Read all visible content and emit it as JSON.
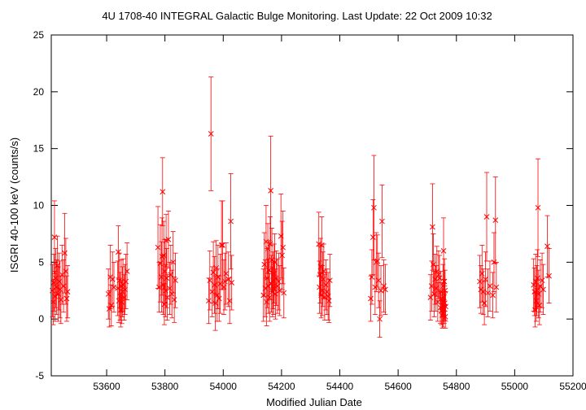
{
  "chart_data": {
    "type": "scatter",
    "title": "4U 1708-40   INTEGRAL Galactic Bulge Monitoring.  Last Update: 22 Oct 2009 10:32",
    "xlabel": "Modified Julian Date",
    "ylabel": "ISGRI 40-100 keV (counts/s)",
    "xlim": [
      53410,
      55200
    ],
    "ylim": [
      -5,
      25
    ],
    "xticks": [
      53600,
      53800,
      54000,
      54200,
      54400,
      54600,
      54800,
      55000,
      55200
    ],
    "yticks": [
      -5,
      0,
      5,
      10,
      15,
      20,
      25
    ],
    "grid": false,
    "legend": "none",
    "color": "#ff0000",
    "points": [
      {
        "x": 53414,
        "y": 2.5,
        "err": 2.3
      },
      {
        "x": 53417,
        "y": 1.5,
        "err": 2.0
      },
      {
        "x": 53419,
        "y": 3.2,
        "err": 2.5
      },
      {
        "x": 53421,
        "y": 7.2,
        "err": 3.2
      },
      {
        "x": 53423,
        "y": 2.0,
        "err": 2.2
      },
      {
        "x": 53425,
        "y": 3.6,
        "err": 2.6
      },
      {
        "x": 53428,
        "y": 2.8,
        "err": 2.4
      },
      {
        "x": 53431,
        "y": 4.7,
        "err": 2.6
      },
      {
        "x": 53434,
        "y": 2.2,
        "err": 2.4
      },
      {
        "x": 53437,
        "y": 3.3,
        "err": 2.5
      },
      {
        "x": 53440,
        "y": 2.6,
        "err": 2.5
      },
      {
        "x": 53443,
        "y": 1.7,
        "err": 2.1
      },
      {
        "x": 53447,
        "y": 3.9,
        "err": 2.6
      },
      {
        "x": 53452,
        "y": 2.9,
        "err": 2.3
      },
      {
        "x": 53456,
        "y": 5.8,
        "err": 3.5
      },
      {
        "x": 53460,
        "y": 4.2,
        "err": 2.9
      },
      {
        "x": 53463,
        "y": 1.8,
        "err": 2.0
      },
      {
        "x": 53466,
        "y": 2.4,
        "err": 2.3
      },
      {
        "x": 53606,
        "y": 2.2,
        "err": 2.2
      },
      {
        "x": 53609,
        "y": 0.9,
        "err": 1.6
      },
      {
        "x": 53613,
        "y": 3.7,
        "err": 2.8
      },
      {
        "x": 53616,
        "y": 1.2,
        "err": 1.8
      },
      {
        "x": 53620,
        "y": 3.5,
        "err": 2.4
      },
      {
        "x": 53625,
        "y": 2.8,
        "err": 2.2
      },
      {
        "x": 53638,
        "y": 2.7,
        "err": 2.4
      },
      {
        "x": 53640,
        "y": 5.9,
        "err": 2.3
      },
      {
        "x": 53642,
        "y": 1.6,
        "err": 1.9
      },
      {
        "x": 53644,
        "y": 3.4,
        "err": 2.4
      },
      {
        "x": 53646,
        "y": 2.0,
        "err": 2.1
      },
      {
        "x": 53648,
        "y": 0.8,
        "err": 1.5
      },
      {
        "x": 53650,
        "y": 2.9,
        "err": 2.3
      },
      {
        "x": 53652,
        "y": 1.5,
        "err": 1.9
      },
      {
        "x": 53654,
        "y": 2.4,
        "err": 2.2
      },
      {
        "x": 53656,
        "y": 3.0,
        "err": 2.3
      },
      {
        "x": 53660,
        "y": 1.9,
        "err": 2.0
      },
      {
        "x": 53663,
        "y": 2.6,
        "err": 2.2
      },
      {
        "x": 53666,
        "y": 3.3,
        "err": 2.4
      },
      {
        "x": 53670,
        "y": 4.2,
        "err": 2.5
      },
      {
        "x": 53776,
        "y": 6.3,
        "err": 3.6
      },
      {
        "x": 53780,
        "y": 2.8,
        "err": 2.2
      },
      {
        "x": 53784,
        "y": 4.9,
        "err": 3.4
      },
      {
        "x": 53788,
        "y": 3.7,
        "err": 3.1
      },
      {
        "x": 53790,
        "y": 5.5,
        "err": 3.4
      },
      {
        "x": 53792,
        "y": 11.2,
        "err": 3.0
      },
      {
        "x": 53794,
        "y": 3.0,
        "err": 2.6
      },
      {
        "x": 53796,
        "y": 5.6,
        "err": 3.0
      },
      {
        "x": 53798,
        "y": 1.3,
        "err": 1.8
      },
      {
        "x": 53800,
        "y": 4.2,
        "err": 2.8
      },
      {
        "x": 53802,
        "y": 2.5,
        "err": 2.3
      },
      {
        "x": 53804,
        "y": 6.9,
        "err": 2.3
      },
      {
        "x": 53806,
        "y": 3.6,
        "err": 2.6
      },
      {
        "x": 53808,
        "y": 1.9,
        "err": 2.0
      },
      {
        "x": 53812,
        "y": 7.0,
        "err": 2.5
      },
      {
        "x": 53816,
        "y": 2.7,
        "err": 2.3
      },
      {
        "x": 53820,
        "y": 3.9,
        "err": 2.6
      },
      {
        "x": 53824,
        "y": 2.2,
        "err": 2.1
      },
      {
        "x": 53828,
        "y": 5.0,
        "err": 2.7
      },
      {
        "x": 53832,
        "y": 1.7,
        "err": 2.0
      },
      {
        "x": 53836,
        "y": 3.4,
        "err": 2.4
      },
      {
        "x": 53950,
        "y": 1.6,
        "err": 2.0
      },
      {
        "x": 53954,
        "y": 3.4,
        "err": 2.6
      },
      {
        "x": 53958,
        "y": 16.3,
        "err": 5.0
      },
      {
        "x": 53962,
        "y": 2.4,
        "err": 2.2
      },
      {
        "x": 53966,
        "y": 4.1,
        "err": 2.7
      },
      {
        "x": 53970,
        "y": 3.0,
        "err": 2.5
      },
      {
        "x": 53973,
        "y": 1.4,
        "err": 2.4
      },
      {
        "x": 53976,
        "y": 4.5,
        "err": 2.4
      },
      {
        "x": 53979,
        "y": 2.1,
        "err": 2.3
      },
      {
        "x": 53982,
        "y": 3.7,
        "err": 2.8
      },
      {
        "x": 53986,
        "y": 1.8,
        "err": 2.0
      },
      {
        "x": 53990,
        "y": 3.1,
        "err": 2.6
      },
      {
        "x": 53994,
        "y": 6.5,
        "err": 3.9
      },
      {
        "x": 53998,
        "y": 6.5,
        "err": 3.9
      },
      {
        "x": 54002,
        "y": 2.8,
        "err": 2.4
      },
      {
        "x": 54006,
        "y": 3.3,
        "err": 2.5
      },
      {
        "x": 54010,
        "y": 4.0,
        "err": 2.7
      },
      {
        "x": 54018,
        "y": 3.5,
        "err": 2.4
      },
      {
        "x": 54022,
        "y": 1.6,
        "err": 2.0
      },
      {
        "x": 54026,
        "y": 8.6,
        "err": 4.2
      },
      {
        "x": 54029,
        "y": 3.2,
        "err": 2.4
      },
      {
        "x": 54138,
        "y": 2.1,
        "err": 2.3
      },
      {
        "x": 54141,
        "y": 4.8,
        "err": 2.8
      },
      {
        "x": 54144,
        "y": 2.7,
        "err": 2.5
      },
      {
        "x": 54147,
        "y": 6.8,
        "err": 3.2
      },
      {
        "x": 54149,
        "y": 1.5,
        "err": 2.1
      },
      {
        "x": 54151,
        "y": 3.6,
        "err": 2.6
      },
      {
        "x": 54153,
        "y": 6.2,
        "err": 2.2
      },
      {
        "x": 54155,
        "y": 2.9,
        "err": 2.4
      },
      {
        "x": 54157,
        "y": 4.3,
        "err": 2.6
      },
      {
        "x": 54159,
        "y": 1.9,
        "err": 2.1
      },
      {
        "x": 54161,
        "y": 6.6,
        "err": 2.4
      },
      {
        "x": 54163,
        "y": 11.3,
        "err": 4.8
      },
      {
        "x": 54165,
        "y": 3.1,
        "err": 2.5
      },
      {
        "x": 54167,
        "y": 5.2,
        "err": 2.8
      },
      {
        "x": 54169,
        "y": 2.4,
        "err": 2.2
      },
      {
        "x": 54171,
        "y": 3.4,
        "err": 2.5
      },
      {
        "x": 54173,
        "y": 2.7,
        "err": 2.3
      },
      {
        "x": 54175,
        "y": 4.0,
        "err": 2.6
      },
      {
        "x": 54177,
        "y": 5.0,
        "err": 2.5
      },
      {
        "x": 54179,
        "y": 2.2,
        "err": 2.2
      },
      {
        "x": 54182,
        "y": 3.6,
        "err": 2.4
      },
      {
        "x": 54186,
        "y": 2.9,
        "err": 2.4
      },
      {
        "x": 54190,
        "y": 3.3,
        "err": 2.5
      },
      {
        "x": 54194,
        "y": 2.5,
        "err": 2.2
      },
      {
        "x": 54198,
        "y": 7.3,
        "err": 3.7
      },
      {
        "x": 54202,
        "y": 5.6,
        "err": 3.0
      },
      {
        "x": 54205,
        "y": 6.3,
        "err": 3.2
      },
      {
        "x": 54208,
        "y": 2.3,
        "err": 2.2
      },
      {
        "x": 54328,
        "y": 6.6,
        "err": 2.8
      },
      {
        "x": 54330,
        "y": 2.8,
        "err": 2.3
      },
      {
        "x": 54332,
        "y": 3.9,
        "err": 2.5
      },
      {
        "x": 54334,
        "y": 4.6,
        "err": 2.5
      },
      {
        "x": 54336,
        "y": 2.1,
        "err": 2.0
      },
      {
        "x": 54338,
        "y": 6.5,
        "err": 2.5
      },
      {
        "x": 54340,
        "y": 2.5,
        "err": 2.2
      },
      {
        "x": 54342,
        "y": 3.5,
        "err": 2.4
      },
      {
        "x": 54345,
        "y": 4.2,
        "err": 2.4
      },
      {
        "x": 54348,
        "y": 1.9,
        "err": 2.0
      },
      {
        "x": 54352,
        "y": 3.0,
        "err": 2.2
      },
      {
        "x": 54356,
        "y": 2.4,
        "err": 2.0
      },
      {
        "x": 54360,
        "y": 2.0,
        "err": 2.1
      },
      {
        "x": 54363,
        "y": 1.6,
        "err": 1.9
      },
      {
        "x": 54366,
        "y": 3.4,
        "err": 2.3
      },
      {
        "x": 54506,
        "y": 1.8,
        "err": 2.0
      },
      {
        "x": 54510,
        "y": 3.7,
        "err": 2.4
      },
      {
        "x": 54514,
        "y": 7.2,
        "err": 3.3
      },
      {
        "x": 54517,
        "y": 9.8,
        "err": 4.6
      },
      {
        "x": 54521,
        "y": 2.8,
        "err": 2.4
      },
      {
        "x": 54525,
        "y": 5.0,
        "err": 2.6
      },
      {
        "x": 54529,
        "y": 5.1,
        "err": 2.3
      },
      {
        "x": 54533,
        "y": 3.4,
        "err": 2.4
      },
      {
        "x": 54537,
        "y": 0.0,
        "err": 1.6
      },
      {
        "x": 54541,
        "y": 2.5,
        "err": 2.2
      },
      {
        "x": 54545,
        "y": 8.6,
        "err": 3.2
      },
      {
        "x": 54551,
        "y": 2.9,
        "err": 2.3
      },
      {
        "x": 54556,
        "y": 2.6,
        "err": 2.2
      },
      {
        "x": 54711,
        "y": 1.9,
        "err": 2.0
      },
      {
        "x": 54715,
        "y": 2.9,
        "err": 2.2
      },
      {
        "x": 54718,
        "y": 8.1,
        "err": 3.8
      },
      {
        "x": 54721,
        "y": 4.8,
        "err": 2.7
      },
      {
        "x": 54724,
        "y": 2.2,
        "err": 2.0
      },
      {
        "x": 54727,
        "y": 3.5,
        "err": 2.2
      },
      {
        "x": 54730,
        "y": 2.7,
        "err": 2.0
      },
      {
        "x": 54733,
        "y": 4.2,
        "err": 2.2
      },
      {
        "x": 54736,
        "y": 1.5,
        "err": 1.7
      },
      {
        "x": 54739,
        "y": 3.9,
        "err": 2.1
      },
      {
        "x": 54742,
        "y": 3.6,
        "err": 2.0
      },
      {
        "x": 54745,
        "y": 1.0,
        "err": 1.4
      },
      {
        "x": 54747,
        "y": 2.4,
        "err": 1.8
      },
      {
        "x": 54749,
        "y": 0.7,
        "err": 1.2
      },
      {
        "x": 54751,
        "y": 1.7,
        "err": 1.5
      },
      {
        "x": 54752,
        "y": 0.3,
        "err": 1.1
      },
      {
        "x": 54753,
        "y": 1.2,
        "err": 1.4
      },
      {
        "x": 54754,
        "y": 2.9,
        "err": 1.9
      },
      {
        "x": 54755,
        "y": 0.5,
        "err": 1.2
      },
      {
        "x": 54756,
        "y": 6.0,
        "err": 2.9
      },
      {
        "x": 54757,
        "y": 1.9,
        "err": 1.6
      },
      {
        "x": 54758,
        "y": 0.9,
        "err": 1.3
      },
      {
        "x": 54759,
        "y": 3.3,
        "err": 2.0
      },
      {
        "x": 54760,
        "y": 1.4,
        "err": 1.5
      },
      {
        "x": 54761,
        "y": 2.5,
        "err": 1.8
      },
      {
        "x": 54762,
        "y": 0.2,
        "err": 1.0
      },
      {
        "x": 54763,
        "y": 1.1,
        "err": 1.3
      },
      {
        "x": 54880,
        "y": 3.3,
        "err": 2.3
      },
      {
        "x": 54884,
        "y": 2.6,
        "err": 2.1
      },
      {
        "x": 54888,
        "y": 4.0,
        "err": 2.5
      },
      {
        "x": 54892,
        "y": 2.4,
        "err": 2.0
      },
      {
        "x": 54896,
        "y": 1.4,
        "err": 1.9
      },
      {
        "x": 54900,
        "y": 3.5,
        "err": 2.4
      },
      {
        "x": 54904,
        "y": 9.0,
        "err": 3.9
      },
      {
        "x": 54908,
        "y": 2.3,
        "err": 2.1
      },
      {
        "x": 54915,
        "y": 2.9,
        "err": 2.2
      },
      {
        "x": 54925,
        "y": 2.1,
        "err": 2.0
      },
      {
        "x": 54929,
        "y": 5.0,
        "err": 2.6
      },
      {
        "x": 54934,
        "y": 8.7,
        "err": 3.8
      },
      {
        "x": 54937,
        "y": 2.8,
        "err": 2.2
      },
      {
        "x": 55065,
        "y": 3.0,
        "err": 2.3
      },
      {
        "x": 55068,
        "y": 2.4,
        "err": 2.1
      },
      {
        "x": 55070,
        "y": 0.8,
        "err": 1.5
      },
      {
        "x": 55072,
        "y": 3.3,
        "err": 2.4
      },
      {
        "x": 55074,
        "y": 1.6,
        "err": 1.8
      },
      {
        "x": 55076,
        "y": 2.5,
        "err": 2.2
      },
      {
        "x": 55078,
        "y": 3.6,
        "err": 2.5
      },
      {
        "x": 55080,
        "y": 9.8,
        "err": 4.3
      },
      {
        "x": 55082,
        "y": 2.2,
        "err": 2.1
      },
      {
        "x": 55085,
        "y": 1.2,
        "err": 1.7
      },
      {
        "x": 55088,
        "y": 2.9,
        "err": 2.3
      },
      {
        "x": 55094,
        "y": 3.4,
        "err": 2.4
      },
      {
        "x": 55098,
        "y": 2.6,
        "err": 2.2
      },
      {
        "x": 55112,
        "y": 6.4,
        "err": 2.7
      },
      {
        "x": 55118,
        "y": 3.8,
        "err": 2.4
      }
    ]
  }
}
